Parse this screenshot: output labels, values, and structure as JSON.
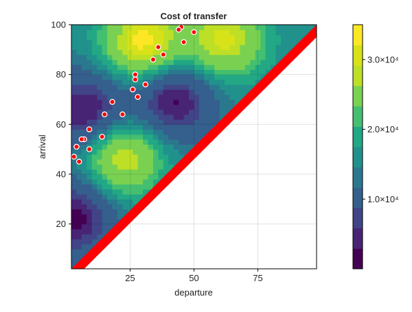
{
  "chart_data": {
    "type": "heatmap",
    "subtype": "filled-contour-with-scatter",
    "title": "Cost of transfer",
    "xlabel": "departure",
    "ylabel": "arrival",
    "xlim": [
      2,
      98
    ],
    "ylim": [
      2,
      100
    ],
    "xticks": [
      25,
      50,
      75
    ],
    "yticks": [
      20,
      40,
      60,
      80,
      100
    ],
    "grid": true,
    "colormap": "viridis",
    "contour_levels": [
      0,
      2500,
      5000,
      7500,
      10000,
      12500,
      15000,
      17500,
      20000,
      22500,
      25000,
      27500,
      30000,
      32500,
      35000
    ],
    "colorbar": {
      "range": [
        0,
        35000
      ],
      "ticks": [
        10000,
        20000,
        30000
      ],
      "tick_labels": [
        "1.0×10⁴",
        "2.0×10⁴",
        "3.0×10⁴"
      ],
      "colors": [
        "#440154",
        "#482475",
        "#414487",
        "#355f8d",
        "#2a788e",
        "#21918c",
        "#22a884",
        "#44bf70",
        "#7ad151",
        "#bddf26",
        "#d7e219",
        "#fde725"
      ]
    },
    "contour_peaks": [
      {
        "x": 22,
        "y": 47,
        "value": 31000
      },
      {
        "x": 62,
        "y": 94,
        "value": 31000
      },
      {
        "x": 30,
        "y": 93,
        "value": 34000
      },
      {
        "x": 8,
        "y": 65,
        "value": 1000
      },
      {
        "x": 42,
        "y": 70,
        "value": 1000
      },
      {
        "x": 3,
        "y": 23,
        "value": 1000
      }
    ],
    "invalid_region_color": "#ff0000",
    "scatter_points": [
      {
        "x": 45,
        "y": 99
      },
      {
        "x": 44,
        "y": 98
      },
      {
        "x": 50,
        "y": 97
      },
      {
        "x": 46,
        "y": 93
      },
      {
        "x": 36,
        "y": 91
      },
      {
        "x": 34,
        "y": 86
      },
      {
        "x": 38,
        "y": 88
      },
      {
        "x": 27,
        "y": 80
      },
      {
        "x": 27,
        "y": 78
      },
      {
        "x": 31,
        "y": 76
      },
      {
        "x": 26,
        "y": 74
      },
      {
        "x": 28,
        "y": 71
      },
      {
        "x": 18,
        "y": 69
      },
      {
        "x": 22,
        "y": 64
      },
      {
        "x": 15,
        "y": 64
      },
      {
        "x": 9,
        "y": 58
      },
      {
        "x": 7,
        "y": 54
      },
      {
        "x": 6,
        "y": 54
      },
      {
        "x": 14,
        "y": 55
      },
      {
        "x": 4,
        "y": 51
      },
      {
        "x": 9,
        "y": 50
      },
      {
        "x": 3,
        "y": 47
      },
      {
        "x": 5,
        "y": 45
      }
    ]
  }
}
